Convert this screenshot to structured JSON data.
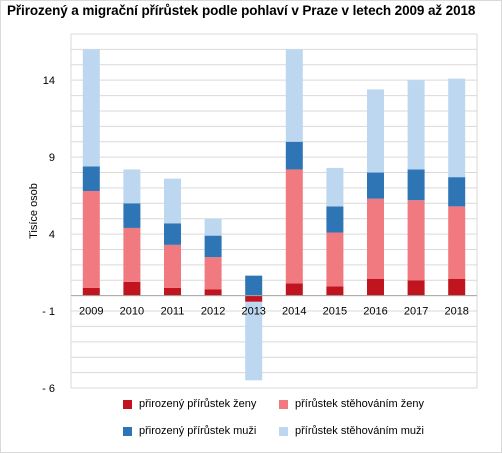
{
  "title": "Přirozený a migrační přírůstek podle pohlaví v Praze v letech 2009 až 2018",
  "chart_data": {
    "type": "bar",
    "stacked": true,
    "title": "Přirozený a migrační přírůstek podle pohlaví v Praze v letech 2009 až 2018",
    "ylabel": "Tisíce osob",
    "xlabel": "",
    "ylim": [
      -6,
      17
    ],
    "yticks": [
      14,
      9,
      4,
      -1,
      -6
    ],
    "ytick_labels": [
      "14",
      "9",
      "4",
      "- 1",
      "- 6"
    ],
    "grid": true,
    "legend_position": "bottom",
    "categories": [
      "2009",
      "2010",
      "2011",
      "2012",
      "2013",
      "2014",
      "2015",
      "2016",
      "2017",
      "2018"
    ],
    "series": [
      {
        "name": "přirozený přírůstek ženy",
        "color": "#c0141f",
        "values": [
          0.5,
          0.9,
          0.5,
          0.4,
          -0.4,
          0.8,
          0.6,
          1.1,
          1.0,
          1.1
        ]
      },
      {
        "name": "přírůstek stěhováním ženy",
        "color": "#f07a80",
        "values": [
          6.3,
          3.5,
          2.8,
          2.1,
          0.0,
          7.4,
          3.5,
          5.2,
          5.2,
          4.7
        ]
      },
      {
        "name": "přirozený přírůstek muži",
        "color": "#2e75b6",
        "values": [
          1.6,
          1.6,
          1.4,
          1.4,
          1.3,
          1.8,
          1.7,
          1.7,
          2.0,
          1.9
        ]
      },
      {
        "name": "přírůstek stěhováním muži",
        "color": "#bcd7ef",
        "values": [
          7.6,
          2.2,
          2.9,
          1.1,
          -5.1,
          6.0,
          2.5,
          5.4,
          5.8,
          6.4
        ]
      }
    ]
  }
}
